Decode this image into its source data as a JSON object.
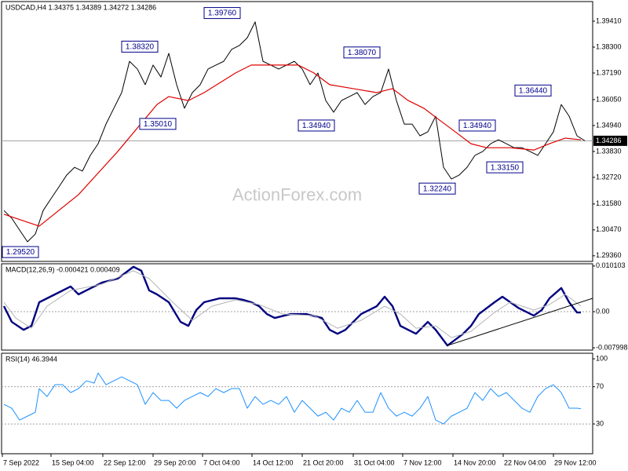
{
  "chart_data": [
    {
      "type": "line",
      "title": "USDCAD,H4  1.34375 1.34389 1.34272 1.34286",
      "watermark": "ActionForex.com",
      "xlim": [
        -0.3,
        75
      ],
      "ylim": [
        1.2912,
        1.4025
      ],
      "yticks": [
        {
          "value": 1.3941,
          "label": "1.39410"
        },
        {
          "value": 1.383,
          "label": "1.38300"
        },
        {
          "value": 1.3719,
          "label": "1.37190"
        },
        {
          "value": 1.3605,
          "label": "1.36050"
        },
        {
          "value": 1.3494,
          "label": "1.34940"
        },
        {
          "value": 1.3383,
          "label": "1.33830"
        },
        {
          "value": 1.3272,
          "label": "1.32720"
        },
        {
          "value": 1.3158,
          "label": "1.31580"
        },
        {
          "value": 1.3047,
          "label": "1.30470"
        },
        {
          "value": 1.2936,
          "label": "1.29360"
        }
      ],
      "last_price": 1.34286,
      "series": [
        {
          "color": "#000000",
          "line_width": 1,
          "x": [
            0,
            1,
            2,
            3,
            4,
            5,
            6,
            7,
            8,
            9,
            10,
            11,
            12,
            13,
            14,
            15,
            16,
            17,
            18,
            19,
            20,
            21,
            22,
            23,
            24,
            25,
            26,
            27,
            28,
            29,
            30,
            31,
            32,
            33,
            34,
            35,
            36,
            37,
            38,
            39,
            40,
            41,
            42,
            43,
            44,
            45,
            46,
            47,
            48,
            49,
            50,
            51,
            52,
            53,
            54,
            55,
            56,
            57,
            58,
            59,
            60,
            61,
            62,
            63,
            64,
            65,
            66,
            67,
            68,
            69,
            70,
            71,
            72,
            73,
            74
          ],
          "values": [
            1.313,
            1.3097,
            1.3046,
            1.2996,
            1.3029,
            1.313,
            1.3181,
            1.3231,
            1.3282,
            1.3315,
            1.3299,
            1.3366,
            1.3416,
            1.35,
            1.3568,
            1.3635,
            1.3769,
            1.3736,
            1.3669,
            1.3753,
            1.3702,
            1.3803,
            1.3669,
            1.3568,
            1.3635,
            1.3669,
            1.3736,
            1.3753,
            1.3769,
            1.382,
            1.3837,
            1.387,
            1.3938,
            1.3769,
            1.3753,
            1.3736,
            1.3753,
            1.3769,
            1.3736,
            1.3669,
            1.3719,
            1.3601,
            1.3551,
            1.3601,
            1.3618,
            1.3635,
            1.3584,
            1.3618,
            1.3635,
            1.3736,
            1.3601,
            1.35,
            1.35,
            1.345,
            1.3467,
            1.3534,
            1.3315,
            1.3265,
            1.3282,
            1.3315,
            1.3366,
            1.3383,
            1.3416,
            1.3433,
            1.3416,
            1.3399,
            1.3399,
            1.3383,
            1.3366,
            1.3416,
            1.3467,
            1.3584,
            1.3534,
            1.345,
            1.3429
          ]
        },
        {
          "color": "#e00000",
          "line_width": 1.2,
          "x": [
            0,
            4.5,
            9.5,
            14.5,
            19.5,
            21,
            23.5,
            25.5,
            29.5,
            31.5,
            34.5,
            37.5,
            39.5,
            41.5,
            44.5,
            47.5,
            49.5,
            51.5,
            53.5,
            55.5,
            57.5,
            59.5,
            61.5,
            64.5,
            67.5,
            69.5,
            71.5,
            73.5
          ],
          "values": [
            1.3114,
            1.3063,
            1.3198,
            1.3383,
            1.3584,
            1.3618,
            1.3601,
            1.3635,
            1.3719,
            1.3753,
            1.3753,
            1.3753,
            1.3719,
            1.3669,
            1.3652,
            1.3635,
            1.3652,
            1.3601,
            1.3568,
            1.3517,
            1.3467,
            1.3416,
            1.3399,
            1.3399,
            1.3389,
            1.3416,
            1.344,
            1.3433
          ]
        }
      ],
      "annotations": [
        {
          "x": 25.5,
          "value": 1.3976,
          "label": "1.39760"
        },
        {
          "x": 15,
          "value": 1.3832,
          "label": "1.38320"
        },
        {
          "x": 17.3,
          "value": 1.3501,
          "label": "1.35010"
        },
        {
          "x": 43.3,
          "value": 1.3807,
          "label": "1.38070"
        },
        {
          "x": 37.5,
          "value": 1.3494,
          "label": "1.34940"
        },
        {
          "x": 52.9,
          "value": 1.3224,
          "label": "1.32240"
        },
        {
          "x": 58,
          "value": 1.3494,
          "label": "1.34940"
        },
        {
          "x": 61.5,
          "value": 1.3315,
          "label": "1.33150"
        },
        {
          "x": 65.1,
          "value": 1.3644,
          "label": "1.36440"
        },
        {
          "x": -0.2,
          "value": 1.2952,
          "label": "1.29520"
        }
      ]
    },
    {
      "type": "line",
      "title": "MACD(12,26,9) -0.000421 0.000409",
      "xlim": [
        -0.3,
        75
      ],
      "ylim": [
        -0.0085,
        0.0106
      ],
      "yticks": [
        0.010103,
        {
          "value": 0,
          "label": "0.00"
        },
        -0.007998
      ],
      "levels": [
        0
      ],
      "series": [
        {
          "color": "#00007f",
          "line_width": 2.4,
          "x": [
            0,
            1,
            2.5,
            3.5,
            4.5,
            5.5,
            6.5,
            8.5,
            9.5,
            10.5,
            12.5,
            14.5,
            16.5,
            17.5,
            18.5,
            19.5,
            21,
            22.5,
            23.5,
            24.5,
            25.5,
            27.5,
            29.5,
            30.5,
            31.5,
            32.5,
            33.5,
            34.5,
            36.5,
            38.5,
            40.5,
            41.5,
            42.5,
            43.5,
            44.5,
            45.5,
            46.5,
            47.5,
            48.5,
            49.5,
            50.5,
            51.5,
            52.5,
            54,
            55,
            56.5,
            58.5,
            59.5,
            60.5,
            62.5,
            63.5,
            64.5,
            65.5,
            67.5,
            68.5,
            69.5,
            71,
            72,
            73,
            73.5
          ],
          "values": [
            0.00122,
            -0.00226,
            -0.00401,
            -0.00314,
            0.00209,
            0.00296,
            0.00383,
            0.00557,
            0.00383,
            0.0047,
            0.00644,
            0.00732,
            0.00993,
            0.00906,
            0.0047,
            0.00383,
            0.00209,
            -0.00226,
            -0.00314,
            0.00035,
            0.00209,
            0.00296,
            0.00296,
            0.00261,
            0.00209,
            0.00122,
            -0.00052,
            -0.00139,
            -0.00052,
            -0.00052,
            -0.00139,
            -0.00401,
            -0.00488,
            -0.00401,
            -0.00226,
            -0.00052,
            0.00035,
            0.00122,
            0.00331,
            0.00122,
            -0.00314,
            -0.00401,
            -0.00488,
            -0.00226,
            -0.00401,
            -0.00749,
            -0.00488,
            -0.00314,
            -0.00052,
            0.00209,
            0.00331,
            0.00209,
            0.00087,
            -0.00087,
            0.00035,
            0.00296,
            0.00523,
            0.00209,
            -0.00017,
            -0.00017
          ]
        },
        {
          "color": "#b4b4b4",
          "line_width": 1,
          "x": [
            0,
            1.5,
            3.5,
            5.5,
            8.5,
            12.5,
            16.5,
            18.5,
            21.5,
            24,
            26.5,
            29.5,
            32.5,
            35.5,
            39.5,
            42.5,
            45.5,
            48.5,
            50.5,
            52.5,
            55,
            57,
            59.5,
            62.5,
            64.5,
            67.5,
            69.5,
            71.5,
            73.5
          ],
          "values": [
            0.00209,
            -0.00139,
            -0.00366,
            0.00122,
            0.0047,
            0.0061,
            0.00906,
            0.00732,
            0.00209,
            -0.00192,
            0.00122,
            0.00261,
            0.00157,
            -0.00052,
            -0.00087,
            -0.00366,
            -0.00192,
            0.00122,
            -0.00052,
            -0.00366,
            -0.00314,
            -0.00575,
            -0.00435,
            -0.00017,
            0.00209,
            0.00035,
            0.00157,
            0.00383,
            0.00122
          ]
        },
        {
          "color": "#000000",
          "line_width": 1,
          "x": [
            56.5,
            75
          ],
          "values": [
            -0.00749,
            0.00296
          ]
        }
      ]
    },
    {
      "type": "line",
      "title": "RSI(14) 46.3944",
      "xlim": [
        -0.3,
        75
      ],
      "ylim": [
        -2,
        106
      ],
      "yticks": [
        100,
        70,
        30
      ],
      "levels": [
        70,
        30
      ],
      "series": [
        {
          "color": "#1e90ff",
          "line_width": 1,
          "x": [
            0,
            1,
            2,
            3,
            4,
            4.5,
            5.5,
            6.5,
            7.5,
            8.5,
            9.5,
            10.5,
            11.5,
            12,
            13,
            14,
            15,
            16,
            17,
            18,
            19,
            20,
            21,
            22,
            23,
            24,
            25,
            26,
            27,
            28,
            29,
            30,
            31,
            32,
            33,
            34,
            35,
            36,
            37,
            38,
            39,
            40,
            41,
            42,
            43,
            44,
            45,
            46,
            47,
            48,
            49,
            50,
            51,
            52,
            53,
            54,
            55,
            56,
            57,
            58,
            59,
            60,
            61,
            62,
            63,
            64,
            65,
            66,
            67,
            68,
            69,
            70,
            71,
            72,
            73,
            73.5
          ],
          "values": [
            51.1,
            46.9,
            34.2,
            38.4,
            42.6,
            68.0,
            59.5,
            72.2,
            72.2,
            63.7,
            68.0,
            76.4,
            73.9,
            84.8,
            72.2,
            76.4,
            80.6,
            76.4,
            72.2,
            51.1,
            63.7,
            55.3,
            55.3,
            46.9,
            55.3,
            59.5,
            63.7,
            59.5,
            68.0,
            63.7,
            68.0,
            68.0,
            46.9,
            59.5,
            51.1,
            55.3,
            51.1,
            59.5,
            42.6,
            55.3,
            46.9,
            38.4,
            42.6,
            34.2,
            46.9,
            42.6,
            55.3,
            42.6,
            42.6,
            63.7,
            46.9,
            38.4,
            42.6,
            38.4,
            46.9,
            59.5,
            34.2,
            30.0,
            38.4,
            42.6,
            46.9,
            63.7,
            55.3,
            68.0,
            59.5,
            63.7,
            55.3,
            46.9,
            42.6,
            59.5,
            68.0,
            72.2,
            63.7,
            46.9,
            46.9,
            46.4
          ]
        }
      ],
      "xticks": [
        {
          "value": -0.2,
          "label": "7 Sep 2022"
        },
        {
          "value": 6,
          "label": "15 Sep 04:00"
        },
        {
          "value": 12.6,
          "label": "22 Sep 12:00"
        },
        {
          "value": 19,
          "label": "29 Sep 20:00"
        },
        {
          "value": 25.3,
          "label": "7 Oct 04:00"
        },
        {
          "value": 31.6,
          "label": "14 Oct 12:00"
        },
        {
          "value": 38,
          "label": "21 Oct 20:00"
        },
        {
          "value": 44.5,
          "label": "31 Oct 04:00"
        },
        {
          "value": 50.8,
          "label": "7 Nov 12:00"
        },
        {
          "value": 57.2,
          "label": "14 Nov 20:00"
        },
        {
          "value": 63.6,
          "label": "22 Nov 04:00"
        },
        {
          "value": 70,
          "label": "29 Nov 12:00"
        }
      ]
    }
  ]
}
